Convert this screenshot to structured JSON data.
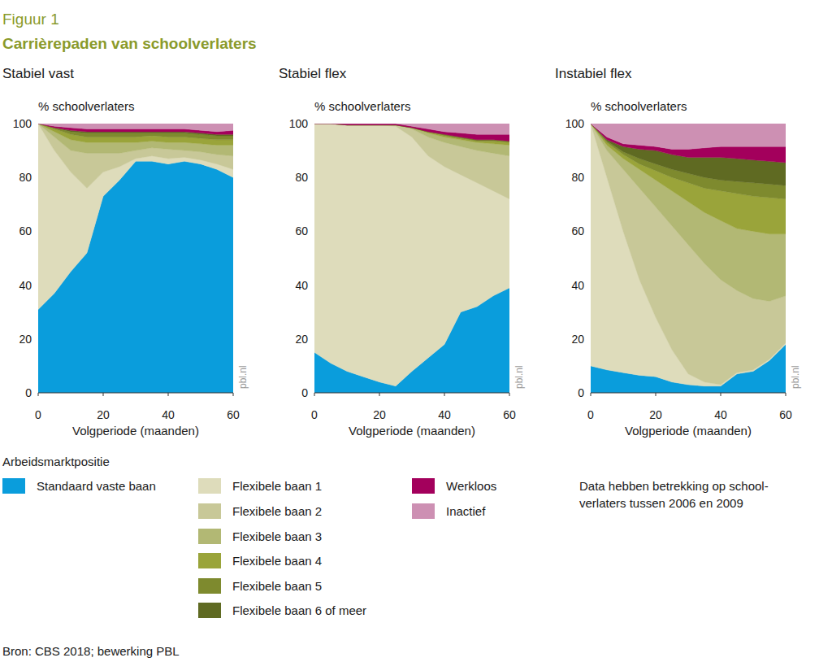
{
  "figure_label": "Figuur 1",
  "title": "Carrièrepaden van schoolverlaters",
  "legend_title": "Arbeidsmarktpositie",
  "note": [
    "Data hebben betrekking op school-",
    "verlaters tussen 2006 en 2009"
  ],
  "source": "Bron: CBS 2018; bewerking PBL",
  "chart_data": [
    {
      "type": "area",
      "stacked": true,
      "title": "Stabiel vast",
      "y_label": "% schoolverlaters",
      "x_label": "Volgperiode (maanden)",
      "watermark": "pbl.nl",
      "x": [
        0,
        5,
        10,
        15,
        20,
        25,
        30,
        35,
        40,
        45,
        50,
        55,
        60
      ],
      "xlim": [
        0,
        60
      ],
      "xticks": [
        0,
        20,
        40,
        60
      ],
      "ylim": [
        0,
        100
      ],
      "yticks": [
        0,
        20,
        40,
        60,
        80,
        100
      ],
      "series": [
        {
          "name": "Standaard vaste baan",
          "color": "#0a9ddc",
          "values": [
            31,
            37,
            45,
            52,
            73,
            79,
            86,
            86,
            85,
            86,
            85,
            83,
            80
          ]
        },
        {
          "name": "Flexibele baan 1",
          "color": "#dedcbb",
          "values": [
            69,
            53,
            37,
            24,
            9,
            5,
            1,
            2,
            2,
            1.5,
            1.5,
            2,
            3
          ]
        },
        {
          "name": "Flexibele baan 2",
          "color": "#c8c898",
          "values": [
            0,
            5,
            8,
            13,
            7,
            5,
            3,
            3,
            3.5,
            2.5,
            3,
            3.5,
            5
          ]
        },
        {
          "name": "Flexibele baan 3",
          "color": "#b2b874",
          "values": [
            0,
            2,
            4,
            4,
            4,
            4,
            3,
            2.5,
            2.5,
            3,
            3,
            3.5,
            4
          ]
        },
        {
          "name": "Flexibele baan 4",
          "color": "#9aa43a",
          "values": [
            0,
            1,
            2,
            2,
            2,
            2,
            2,
            2,
            2,
            2,
            2,
            2,
            2
          ]
        },
        {
          "name": "Flexibele baan 5",
          "color": "#7e8a2e",
          "values": [
            0,
            0.5,
            1,
            1.5,
            1.5,
            1.5,
            1.5,
            1,
            1.5,
            1.5,
            1.5,
            1.5,
            1.5
          ]
        },
        {
          "name": "Flexibele baan 6 of meer",
          "color": "#5f6a22",
          "values": [
            0,
            0,
            0.5,
            0.5,
            0.5,
            0.5,
            0.5,
            0.5,
            0.5,
            0.5,
            0.5,
            0.5,
            0.5
          ]
        },
        {
          "name": "Werkloos",
          "color": "#a3005c",
          "values": [
            0,
            0.5,
            1,
            1,
            1,
            1,
            1,
            1,
            1,
            1,
            1,
            1,
            1.5
          ]
        },
        {
          "name": "Inactief",
          "color": "#cd90b3",
          "values": [
            0,
            1,
            1.5,
            2,
            2,
            2,
            2,
            2,
            2,
            2,
            2.5,
            3,
            2.5
          ]
        }
      ]
    },
    {
      "type": "area",
      "stacked": true,
      "title": "Stabiel flex",
      "y_label": "% schoolverlaters",
      "x_label": "Volgperiode (maanden)",
      "watermark": "pbl.nl",
      "x": [
        0,
        5,
        10,
        15,
        20,
        25,
        30,
        35,
        40,
        45,
        50,
        55,
        60
      ],
      "xlim": [
        0,
        60
      ],
      "xticks": [
        0,
        20,
        40,
        60
      ],
      "ylim": [
        0,
        100
      ],
      "yticks": [
        0,
        20,
        40,
        60,
        80,
        100
      ],
      "series": [
        {
          "name": "Standaard vaste baan",
          "color": "#0a9ddc",
          "values": [
            15,
            11,
            8,
            6,
            4,
            2.5,
            8,
            13,
            18,
            30,
            32,
            36,
            39
          ]
        },
        {
          "name": "Flexibele baan 1",
          "color": "#dedcbb",
          "values": [
            85,
            89,
            91.5,
            93.5,
            95.5,
            96.5,
            87,
            75,
            66,
            51,
            46,
            39,
            33
          ]
        },
        {
          "name": "Flexibele baan 2",
          "color": "#c8c898",
          "values": [
            0,
            0,
            0,
            0,
            0,
            0.5,
            3,
            7,
            9,
            10.5,
            12,
            14,
            16
          ]
        },
        {
          "name": "Flexibele baan 3",
          "color": "#b2b874",
          "values": [
            0,
            0,
            0,
            0,
            0,
            0,
            0.5,
            1.5,
            2,
            2.5,
            3,
            3.5,
            4
          ]
        },
        {
          "name": "Flexibele baan 4",
          "color": "#9aa43a",
          "values": [
            0,
            0,
            0,
            0,
            0,
            0,
            0,
            0.5,
            0.5,
            0.5,
            0.5,
            1,
            1
          ]
        },
        {
          "name": "Flexibele baan 5",
          "color": "#7e8a2e",
          "values": [
            0,
            0,
            0,
            0,
            0,
            0,
            0,
            0,
            0.5,
            0.5,
            0.5,
            0.5,
            0.5
          ]
        },
        {
          "name": "Flexibele baan 6 of meer",
          "color": "#5f6a22",
          "values": [
            0,
            0,
            0,
            0,
            0,
            0,
            0,
            0,
            0,
            0,
            0,
            0,
            0
          ]
        },
        {
          "name": "Werkloos",
          "color": "#a3005c",
          "values": [
            0,
            0,
            0.5,
            0.5,
            0.5,
            0.5,
            0.5,
            1,
            1,
            1.5,
            2,
            2,
            2.5
          ]
        },
        {
          "name": "Inactief",
          "color": "#cd90b3",
          "values": [
            0,
            0,
            0,
            0,
            0,
            0,
            1,
            2,
            3,
            3.5,
            4,
            4,
            4
          ]
        }
      ]
    },
    {
      "type": "area",
      "stacked": true,
      "title": "Instabiel flex",
      "y_label": "% schoolverlaters",
      "x_label": "Volgperiode (maanden)",
      "watermark": "pbl.nl",
      "x": [
        0,
        5,
        10,
        15,
        20,
        25,
        30,
        35,
        40,
        45,
        50,
        55,
        60
      ],
      "xlim": [
        0,
        60
      ],
      "xticks": [
        0,
        20,
        40,
        60
      ],
      "ylim": [
        0,
        100
      ],
      "yticks": [
        0,
        20,
        40,
        60,
        80,
        100
      ],
      "series": [
        {
          "name": "Standaard vaste baan",
          "color": "#0a9ddc",
          "values": [
            10,
            8.5,
            7.5,
            6.5,
            6,
            4,
            3,
            2.5,
            2.5,
            7,
            8,
            12,
            18
          ]
        },
        {
          "name": "Flexibele baan 1",
          "color": "#dedcbb",
          "values": [
            90,
            71.5,
            52.5,
            35.5,
            22,
            12,
            4,
            1.5,
            0.5,
            0.5,
            0.5,
            0.5,
            0.5
          ]
        },
        {
          "name": "Flexibele baan 2",
          "color": "#c8c898",
          "values": [
            0,
            10,
            23,
            34,
            41,
            46,
            48,
            44,
            39,
            30.5,
            26.5,
            21.5,
            17.5
          ]
        },
        {
          "name": "Flexibele baan 3",
          "color": "#b2b874",
          "values": [
            0,
            2,
            4,
            7,
            10,
            13,
            16,
            19,
            22,
            23,
            25,
            25,
            23
          ]
        },
        {
          "name": "Flexibele baan 4",
          "color": "#9aa43a",
          "values": [
            0,
            1,
            1.5,
            2,
            3.5,
            5,
            7,
            9,
            11,
            13,
            13,
            13.5,
            13
          ]
        },
        {
          "name": "Flexibele baan 5",
          "color": "#7e8a2e",
          "values": [
            0,
            0.5,
            1,
            2,
            2.5,
            3,
            3.5,
            4,
            4,
            4.5,
            5,
            5,
            5
          ]
        },
        {
          "name": "Flexibele baan 6 of meer",
          "color": "#5f6a22",
          "values": [
            0,
            0.5,
            2,
            3.5,
            5,
            5.5,
            6,
            7.5,
            8.5,
            8.5,
            8.5,
            8.5,
            8.5
          ]
        },
        {
          "name": "Werkloos",
          "color": "#a3005c",
          "values": [
            0,
            1,
            1,
            1.5,
            1.5,
            2,
            3,
            3.5,
            4,
            4.5,
            5,
            5.5,
            6
          ]
        },
        {
          "name": "Inactief",
          "color": "#cd90b3",
          "values": [
            0,
            5,
            7.5,
            8,
            8.5,
            9.5,
            9.5,
            9,
            8.5,
            8.5,
            8.5,
            8.5,
            8.5
          ]
        }
      ]
    }
  ]
}
